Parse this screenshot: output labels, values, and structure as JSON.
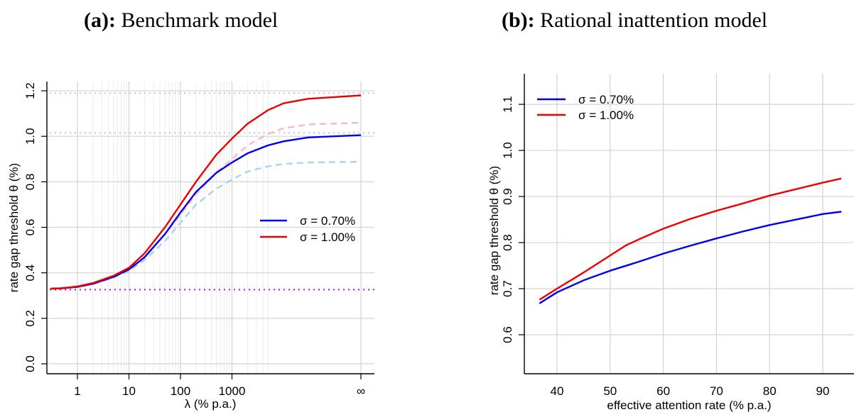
{
  "panels": {
    "a": {
      "label": "(a):",
      "title": "Benchmark model"
    },
    "b": {
      "label": "(b):",
      "title": "Rational inattention model"
    }
  },
  "colors": {
    "blue": "#0000ee",
    "red": "#ee0000",
    "light_blue": "#a8d4ec",
    "light_red": "#f7b8c4",
    "purple": "#a020f0",
    "grid": "#d3d3d3"
  },
  "chart_data": [
    {
      "type": "line",
      "title": "",
      "xlabel": "λ (% p.a.)",
      "ylabel": "rate gap threshold θ (%)",
      "x_scale": "log",
      "x_ticks": [
        1,
        10,
        100,
        1000
      ],
      "x_tick_labels": [
        "1",
        "10",
        "100",
        "1000"
      ],
      "x_infinity_label": "∞",
      "ylim": [
        0,
        1.2
      ],
      "y_ticks": [
        0.0,
        0.2,
        0.4,
        0.6,
        0.8,
        1.0,
        1.2
      ],
      "y_tick_labels": [
        "0.0",
        "0.2",
        "0.4",
        "0.6",
        "0.8",
        "1.0",
        "1.2"
      ],
      "grid": true,
      "legend_position": "right",
      "series": [
        {
          "name": "σ = 0.70%",
          "color": "#0000ee",
          "style": "solid",
          "points": [
            [
              0.3,
              0.33
            ],
            [
              0.5,
              0.332
            ],
            [
              1,
              0.338
            ],
            [
              2,
              0.352
            ],
            [
              5,
              0.382
            ],
            [
              10,
              0.415
            ],
            [
              20,
              0.468
            ],
            [
              50,
              0.57
            ],
            [
              100,
              0.665
            ],
            [
              200,
              0.755
            ],
            [
              500,
              0.84
            ],
            [
              1000,
              0.885
            ],
            [
              2000,
              0.925
            ],
            [
              5000,
              0.96
            ],
            [
              10000,
              0.978
            ],
            [
              30000,
              0.995
            ],
            [
              "inf",
              1.005
            ]
          ]
        },
        {
          "name": "σ = 1.00%",
          "color": "#ee0000",
          "style": "solid",
          "points": [
            [
              0.3,
              0.33
            ],
            [
              0.5,
              0.332
            ],
            [
              1,
              0.34
            ],
            [
              2,
              0.355
            ],
            [
              5,
              0.387
            ],
            [
              10,
              0.422
            ],
            [
              20,
              0.485
            ],
            [
              50,
              0.6
            ],
            [
              100,
              0.7
            ],
            [
              200,
              0.8
            ],
            [
              500,
              0.92
            ],
            [
              1000,
              0.99
            ],
            [
              2000,
              1.055
            ],
            [
              5000,
              1.115
            ],
            [
              10000,
              1.145
            ],
            [
              30000,
              1.165
            ],
            [
              "inf",
              1.18
            ]
          ]
        },
        {
          "name": "",
          "color": "#f7b8c4",
          "style": "dashed",
          "points": [
            [
              0.3,
              0.33
            ],
            [
              1,
              0.34
            ],
            [
              2,
              0.353
            ],
            [
              5,
              0.383
            ],
            [
              10,
              0.416
            ],
            [
              20,
              0.47
            ],
            [
              50,
              0.57
            ],
            [
              100,
              0.655
            ],
            [
              200,
              0.745
            ],
            [
              500,
              0.84
            ],
            [
              1000,
              0.9
            ],
            [
              2000,
              0.96
            ],
            [
              5000,
              1.01
            ],
            [
              10000,
              1.035
            ],
            [
              30000,
              1.052
            ],
            [
              "inf",
              1.06
            ]
          ]
        },
        {
          "name": "",
          "color": "#a8d4ec",
          "style": "dashed",
          "points": [
            [
              0.3,
              0.33
            ],
            [
              1,
              0.338
            ],
            [
              2,
              0.35
            ],
            [
              5,
              0.378
            ],
            [
              10,
              0.408
            ],
            [
              20,
              0.455
            ],
            [
              50,
              0.54
            ],
            [
              100,
              0.62
            ],
            [
              200,
              0.7
            ],
            [
              500,
              0.77
            ],
            [
              1000,
              0.81
            ],
            [
              2000,
              0.845
            ],
            [
              5000,
              0.868
            ],
            [
              10000,
              0.878
            ],
            [
              30000,
              0.885
            ],
            [
              "inf",
              0.888
            ]
          ]
        }
      ],
      "hlines": [
        {
          "y": 1.19,
          "color": "#f7b8c4"
        },
        {
          "y": 1.015,
          "color": "#a8d4ec"
        },
        {
          "y": 0.326,
          "color": "#a020f0"
        }
      ]
    },
    {
      "type": "line",
      "title": "",
      "xlabel": "effective attention rate (% p.a.)",
      "ylabel": "rate gap threshold θ (%)",
      "xlim": [
        35,
        95
      ],
      "x_ticks": [
        40,
        50,
        60,
        70,
        80,
        90
      ],
      "x_tick_labels": [
        "40",
        "50",
        "60",
        "70",
        "80",
        "90"
      ],
      "ylim": [
        0.5,
        1.15
      ],
      "y_ticks": [
        0.6,
        0.7,
        0.8,
        0.9,
        1.0,
        1.1
      ],
      "y_tick_labels": [
        "0.6",
        "0.7",
        "0.8",
        "0.9",
        "1.0",
        "1.1"
      ],
      "grid": true,
      "legend_position": "top-left",
      "series": [
        {
          "name": "σ = 0.70%",
          "color": "#0000ee",
          "style": "solid",
          "points": [
            [
              36.7,
              0.668
            ],
            [
              40,
              0.692
            ],
            [
              45,
              0.718
            ],
            [
              50,
              0.739
            ],
            [
              55,
              0.757
            ],
            [
              60,
              0.776
            ],
            [
              65,
              0.793
            ],
            [
              70,
              0.809
            ],
            [
              75,
              0.824
            ],
            [
              80,
              0.838
            ],
            [
              85,
              0.85
            ],
            [
              90,
              0.862
            ],
            [
              93.5,
              0.867
            ]
          ]
        },
        {
          "name": "σ = 1.00%",
          "color": "#ee0000",
          "style": "solid",
          "points": [
            [
              36.7,
              0.676
            ],
            [
              40,
              0.7
            ],
            [
              45,
              0.735
            ],
            [
              50,
              0.772
            ],
            [
              53,
              0.794
            ],
            [
              56,
              0.81
            ],
            [
              60,
              0.83
            ],
            [
              65,
              0.851
            ],
            [
              70,
              0.869
            ],
            [
              75,
              0.885
            ],
            [
              80,
              0.902
            ],
            [
              85,
              0.916
            ],
            [
              90,
              0.93
            ],
            [
              93.5,
              0.939
            ]
          ]
        }
      ]
    }
  ]
}
